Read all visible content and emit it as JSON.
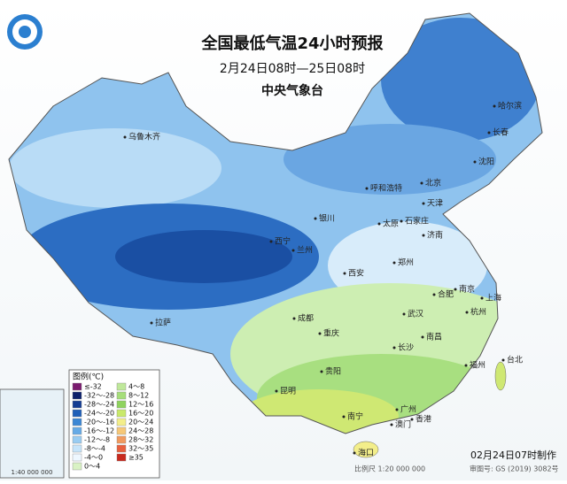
{
  "header": {
    "title": "全国最低气温24小时预报",
    "subtitle": "2月24日08时—25日08时",
    "agency": "中央气象台"
  },
  "legend": {
    "title": "图例(℃)",
    "items": [
      {
        "label": "≤-32",
        "color": "#7a1a6e"
      },
      {
        "label": "-32～-28",
        "color": "#0c1f6b"
      },
      {
        "label": "-28～-24",
        "color": "#143c93"
      },
      {
        "label": "-24～-20",
        "color": "#1f5fb8"
      },
      {
        "label": "-20～-16",
        "color": "#3b86d4"
      },
      {
        "label": "-16～-12",
        "color": "#66aae6"
      },
      {
        "label": "-12～-8",
        "color": "#99ccf2"
      },
      {
        "label": "-8～-4",
        "color": "#c6e4fa"
      },
      {
        "label": "-4～0",
        "color": "#eef7ff"
      },
      {
        "label": "0～4",
        "color": "#d9f2c4"
      },
      {
        "label": "4～8",
        "color": "#bfe89a"
      },
      {
        "label": "8～12",
        "color": "#a6de7a"
      },
      {
        "label": "12～16",
        "color": "#8fd35e"
      },
      {
        "label": "16～20",
        "color": "#c9e96a"
      },
      {
        "label": "20～24",
        "color": "#f3ee8a"
      },
      {
        "label": "24～28",
        "color": "#f6c878"
      },
      {
        "label": "28～32",
        "color": "#f19a5e"
      },
      {
        "label": "32～35",
        "color": "#e8603e"
      },
      {
        "label": "≥35",
        "color": "#c82a1e"
      }
    ]
  },
  "cities": [
    "乌鲁木齐",
    "哈尔滨",
    "长春",
    "沈阳",
    "北京",
    "天津",
    "呼和浩特",
    "石家庄",
    "太原",
    "济南",
    "银川",
    "西宁",
    "兰州",
    "郑州",
    "西安",
    "南京",
    "合肥",
    "上海",
    "杭州",
    "武汉",
    "成都",
    "重庆",
    "长沙",
    "南昌",
    "拉萨",
    "贵阳",
    "福州",
    "台北",
    "昆明",
    "南宁",
    "广州",
    "香港",
    "澳门",
    "海口"
  ],
  "footer": {
    "made": "02月24日07时制作",
    "scale": "比例尺 1:20 000 000",
    "approval": "审图号: GS (2019) 3082号",
    "inset_scale": "1:40 000 000"
  }
}
